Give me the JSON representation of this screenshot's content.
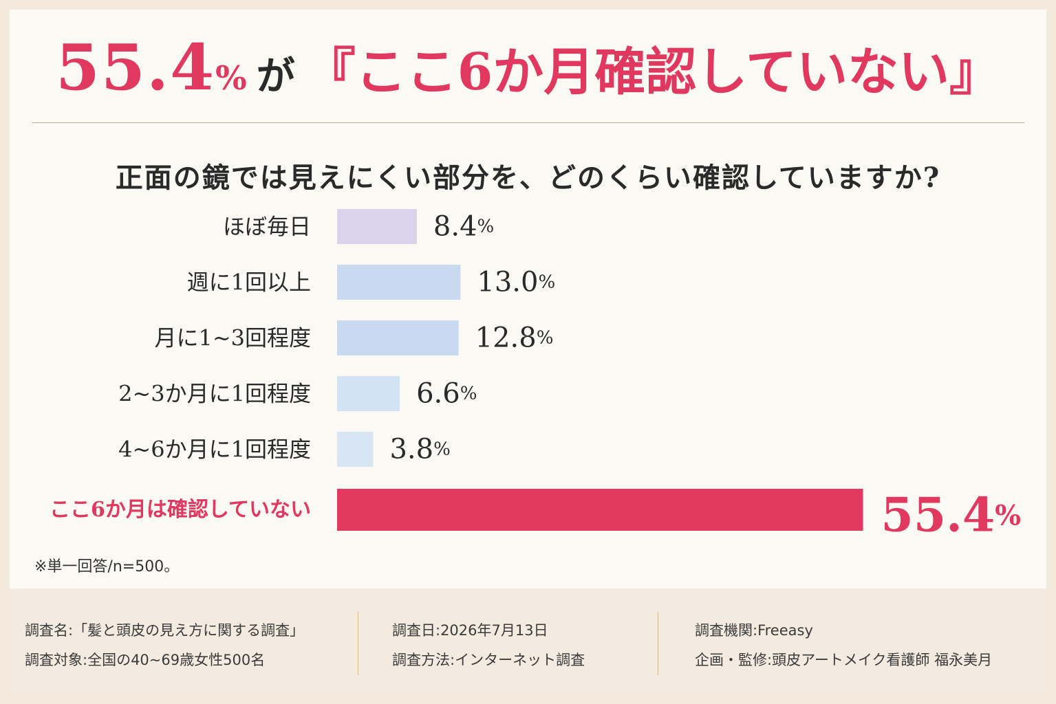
{
  "headline": {
    "big_value": "55.4",
    "big_unit": "%",
    "particle": "が",
    "quote": "『ここ6か月確認していない』"
  },
  "question": "正面の鏡では見えにくい部分を、どのくらい確認していますか?",
  "chart_data": {
    "type": "bar",
    "orientation": "horizontal",
    "title": "正面の鏡では見えにくい部分を、どのくらい確認していますか?",
    "unit": "%",
    "categories": [
      "ほぼ毎日",
      "週に1回以上",
      "月に1~3回程度",
      "2~3か月に1回程度",
      "4~6か月に1回程度",
      "ここ6か月は確認していない"
    ],
    "values": [
      8.4,
      13.0,
      12.8,
      6.6,
      3.8,
      55.4
    ],
    "value_labels": [
      "8.4",
      "13.0",
      "12.8",
      "6.6",
      "3.8",
      "55.4"
    ],
    "colors": [
      "#d9d3ec",
      "#c9daf0",
      "#c9daf0",
      "#d3e3f3",
      "#d8e6f4",
      "#e0385e"
    ],
    "highlight_index": 5,
    "highlight_color": "#e0385e",
    "grid": false,
    "legend": "none"
  },
  "note": "※単一回答/n=500。",
  "footer": {
    "col1": [
      "調査名:「髪と頭皮の見え方に関する調査」",
      "調査対象:全国の40~69歳女性500名"
    ],
    "col2": [
      "調査日:2026年7月13日",
      "調査方法:インターネット調査"
    ],
    "col3": [
      "調査機関:Freeasy",
      "企画・監修:頭皮アートメイク看護師 福永美月"
    ]
  }
}
